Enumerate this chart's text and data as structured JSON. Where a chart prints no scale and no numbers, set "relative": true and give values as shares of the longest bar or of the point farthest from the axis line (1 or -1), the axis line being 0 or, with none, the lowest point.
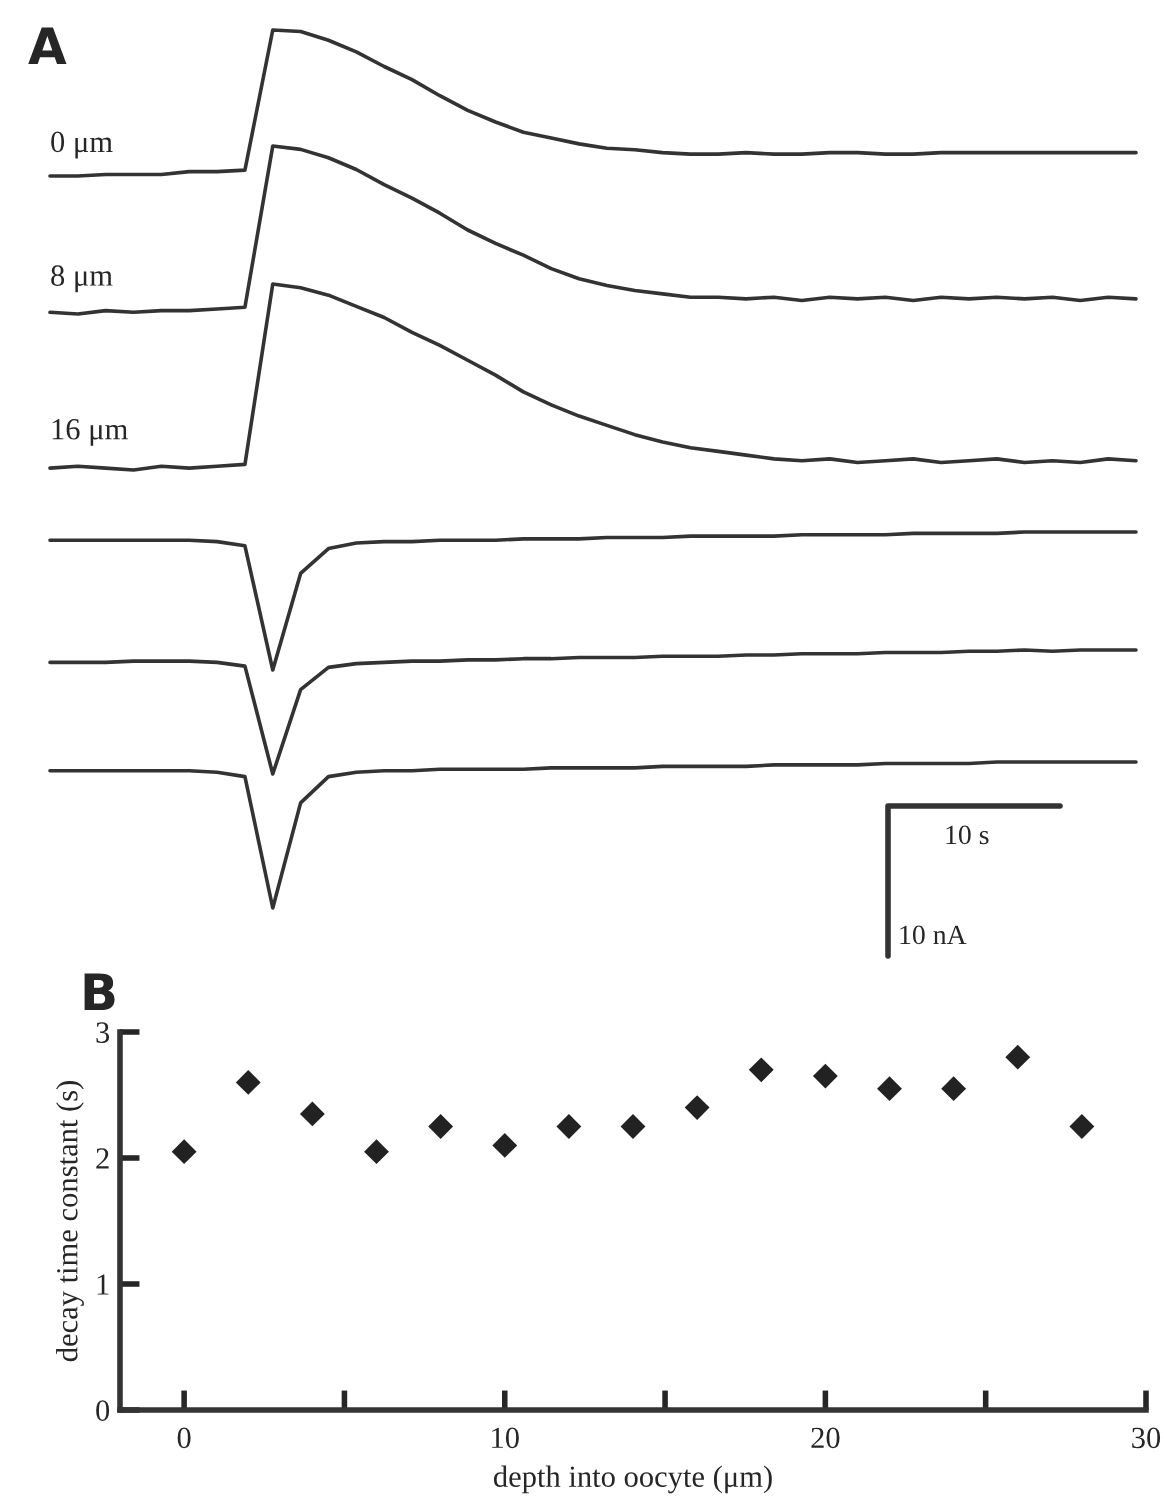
{
  "chart_data": [
    {
      "type": "line",
      "title": "A",
      "relative": true,
      "marker": "none",
      "line_style": "solid",
      "categories": [
        null,
        null,
        null,
        null,
        null,
        null,
        null,
        null,
        null,
        null,
        null,
        null,
        null,
        null,
        null,
        null,
        null,
        null,
        null,
        null,
        null,
        null,
        null,
        null,
        null,
        null,
        null,
        null,
        null,
        null,
        null,
        null,
        null,
        null,
        null,
        null,
        null,
        null,
        null,
        null
      ],
      "series": [
        {
          "name": "0 μm",
          "color": "#333333",
          "values": [
            0,
            0,
            0.01,
            0.01,
            0.01,
            0.03,
            0.03,
            0.04,
            1,
            0.99,
            0.93,
            0.85,
            0.75,
            0.66,
            0.55,
            0.45,
            0.37,
            0.3,
            0.26,
            0.22,
            0.19,
            0.18,
            0.16,
            0.15,
            0.15,
            0.16,
            0.15,
            0.15,
            0.16,
            0.16,
            0.15,
            0.15,
            0.16,
            0.16,
            0.16,
            0.16,
            0.16,
            0.16,
            0.16,
            0.16
          ]
        }
      ]
    },
    {
      "type": "line",
      "relative": true,
      "marker": "none",
      "line_style": "solid",
      "categories": [
        null,
        null,
        null,
        null,
        null,
        null,
        null,
        null,
        null,
        null,
        null,
        null,
        null,
        null,
        null,
        null,
        null,
        null,
        null,
        null,
        null,
        null,
        null,
        null,
        null,
        null,
        null,
        null,
        null,
        null,
        null,
        null,
        null,
        null,
        null,
        null,
        null,
        null,
        null,
        null
      ],
      "series": [
        {
          "name": "8 μm",
          "color": "#333333",
          "values": [
            0.01,
            0,
            0.02,
            0.01,
            0.02,
            0.02,
            0.03,
            0.04,
            1,
            0.98,
            0.93,
            0.86,
            0.77,
            0.69,
            0.6,
            0.5,
            0.42,
            0.35,
            0.27,
            0.21,
            0.17,
            0.14,
            0.12,
            0.1,
            0.1,
            0.09,
            0.1,
            0.08,
            0.1,
            0.09,
            0.1,
            0.08,
            0.1,
            0.09,
            0.1,
            0.09,
            0.1,
            0.08,
            0.1,
            0.09
          ]
        }
      ]
    },
    {
      "type": "line",
      "relative": true,
      "marker": "none",
      "line_style": "solid",
      "categories": [
        null,
        null,
        null,
        null,
        null,
        null,
        null,
        null,
        null,
        null,
        null,
        null,
        null,
        null,
        null,
        null,
        null,
        null,
        null,
        null,
        null,
        null,
        null,
        null,
        null,
        null,
        null,
        null,
        null,
        null,
        null,
        null,
        null,
        null,
        null,
        null,
        null,
        null,
        null,
        null
      ],
      "series": [
        {
          "name": "16 μm",
          "color": "#333333",
          "values": [
            0.01,
            0.02,
            0.01,
            0,
            0.02,
            0.01,
            0.02,
            0.03,
            1,
            0.98,
            0.94,
            0.88,
            0.82,
            0.74,
            0.67,
            0.59,
            0.51,
            0.42,
            0.35,
            0.29,
            0.24,
            0.19,
            0.15,
            0.12,
            0.1,
            0.08,
            0.06,
            0.05,
            0.06,
            0.04,
            0.05,
            0.06,
            0.04,
            0.05,
            0.06,
            0.04,
            0.05,
            0.04,
            0.06,
            0.05
          ]
        }
      ]
    },
    {
      "type": "line",
      "relative": true,
      "marker": "none",
      "line_style": "solid",
      "categories": [
        null,
        null,
        null,
        null,
        null,
        null,
        null,
        null,
        null,
        null,
        null,
        null,
        null,
        null,
        null,
        null,
        null,
        null,
        null,
        null,
        null,
        null,
        null,
        null,
        null,
        null,
        null,
        null,
        null,
        null,
        null,
        null,
        null,
        null,
        null,
        null,
        null,
        null,
        null,
        null
      ],
      "series": [
        {
          "color": "#333333",
          "values": [
            0.94,
            0.94,
            0.94,
            0.94,
            0.94,
            0.94,
            0.93,
            0.9,
            0,
            0.7,
            0.88,
            0.92,
            0.93,
            0.93,
            0.94,
            0.94,
            0.94,
            0.95,
            0.95,
            0.95,
            0.96,
            0.96,
            0.96,
            0.97,
            0.97,
            0.97,
            0.97,
            0.98,
            0.98,
            0.98,
            0.98,
            0.99,
            0.99,
            0.99,
            0.99,
            1,
            1,
            1,
            1,
            1
          ]
        }
      ]
    },
    {
      "type": "line",
      "relative": true,
      "marker": "none",
      "line_style": "solid",
      "categories": [
        null,
        null,
        null,
        null,
        null,
        null,
        null,
        null,
        null,
        null,
        null,
        null,
        null,
        null,
        null,
        null,
        null,
        null,
        null,
        null,
        null,
        null,
        null,
        null,
        null,
        null,
        null,
        null,
        null,
        null,
        null,
        null,
        null,
        null,
        null,
        null,
        null,
        null,
        null,
        null
      ],
      "series": [
        {
          "color": "#333333",
          "values": [
            0.9,
            0.9,
            0.9,
            0.91,
            0.91,
            0.91,
            0.9,
            0.87,
            0,
            0.68,
            0.86,
            0.89,
            0.9,
            0.91,
            0.91,
            0.92,
            0.92,
            0.93,
            0.93,
            0.94,
            0.94,
            0.94,
            0.95,
            0.95,
            0.95,
            0.96,
            0.96,
            0.97,
            0.97,
            0.97,
            0.98,
            0.98,
            0.98,
            0.99,
            0.99,
            1,
            0.99,
            1,
            1,
            1
          ]
        }
      ]
    },
    {
      "type": "line",
      "relative": true,
      "marker": "none",
      "line_style": "solid",
      "annotations": [
        "10 s",
        "10 nA"
      ],
      "categories": [
        null,
        null,
        null,
        null,
        null,
        null,
        null,
        null,
        null,
        null,
        null,
        null,
        null,
        null,
        null,
        null,
        null,
        null,
        null,
        null,
        null,
        null,
        null,
        null,
        null,
        null,
        null,
        null,
        null,
        null,
        null,
        null,
        null,
        null,
        null,
        null,
        null,
        null,
        null,
        null
      ],
      "series": [
        {
          "color": "#333333",
          "values": [
            0.94,
            0.94,
            0.94,
            0.94,
            0.94,
            0.94,
            0.93,
            0.9,
            0,
            0.72,
            0.9,
            0.93,
            0.94,
            0.94,
            0.95,
            0.95,
            0.95,
            0.95,
            0.96,
            0.96,
            0.96,
            0.96,
            0.97,
            0.97,
            0.97,
            0.97,
            0.98,
            0.98,
            0.98,
            0.98,
            0.99,
            0.99,
            0.99,
            0.99,
            1,
            1,
            1,
            1,
            1,
            1
          ]
        }
      ]
    },
    {
      "type": "scatter",
      "title": "B",
      "xlabel": "depth into oocyte (μm)",
      "ylabel": "decay time constant (s)",
      "marker": "diamond",
      "xlim": [
        -2,
        30
      ],
      "ylim": [
        0,
        3
      ],
      "xticks": [
        0,
        {
          "value": 5,
          "label": null
        },
        10,
        {
          "value": 15,
          "label": null
        },
        20,
        {
          "value": 25,
          "label": null
        },
        30
      ],
      "yticks": [
        0,
        1,
        2,
        3
      ],
      "x": [
        0,
        2,
        4,
        6,
        8,
        10,
        12,
        14,
        16,
        18,
        20,
        22,
        24,
        26,
        28
      ],
      "series": [
        {
          "color": "#222222",
          "values": [
            2.05,
            2.6,
            2.35,
            2.05,
            2.25,
            2.1,
            2.25,
            2.25,
            2.4,
            2.7,
            2.65,
            2.55,
            2.55,
            2.8,
            2.25
          ]
        }
      ]
    }
  ]
}
